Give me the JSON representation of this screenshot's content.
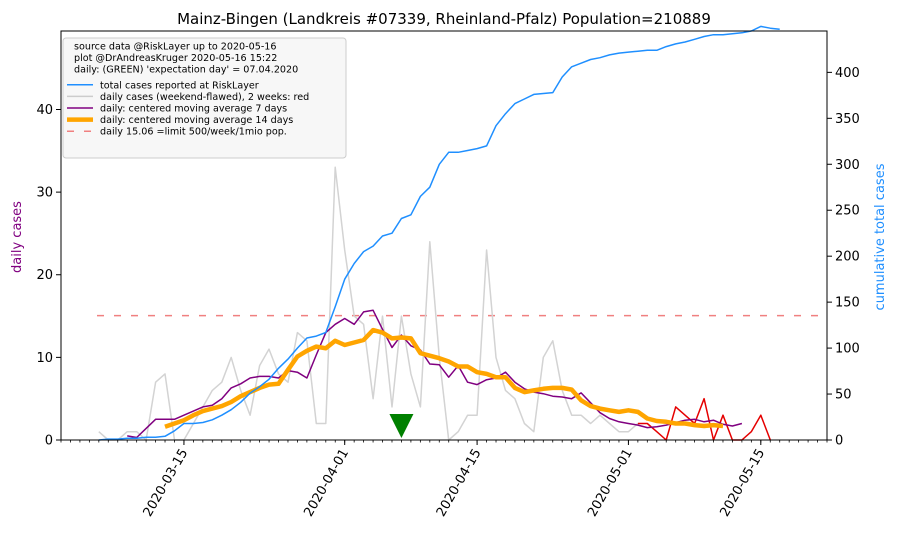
{
  "chart_data": {
    "type": "line",
    "title": "Mainz-Bingen (Landkreis #07339, Rheinland-Pfalz) Population=210889",
    "ylabel_left": "daily cases",
    "ylabel_right": "cumulative total cases",
    "ylim_left": [
      0,
      49.5
    ],
    "ylim_right": [
      0,
      445
    ],
    "yticks_left": [
      0,
      10,
      20,
      30,
      40
    ],
    "yticks_right": [
      0,
      50,
      100,
      150,
      200,
      250,
      300,
      350,
      400
    ],
    "xlim": [
      "2020-03-02",
      "2020-05-22"
    ],
    "xticks": [
      "2020-03-15",
      "2020-04-01",
      "2020-04-15",
      "2020-05-01",
      "2020-05-15"
    ],
    "expectation_day": "2020-04-07",
    "limit_value": 15.06,
    "legend": [
      {
        "label": "source data @RiskLayer up to 2020-05-16",
        "style": "none"
      },
      {
        "label": "plot @DrAndreasKruger 2020-05-16 15:22",
        "style": "none"
      },
      {
        "label": "daily: (GREEN) 'expectation day' = 07.04.2020",
        "style": "none"
      },
      {
        "label": "total cases reported at RiskLayer",
        "style": "line",
        "color": "#1f8fff",
        "width": 1.5
      },
      {
        "label": "daily cases (weekend-flawed), 2 weeks: red",
        "style": "line",
        "color": "#cccccc",
        "width": 1.5
      },
      {
        "label": "daily: centered moving average 7 days",
        "style": "line",
        "color": "#800080",
        "width": 1.5
      },
      {
        "label": "daily: centered moving average 14 days",
        "style": "line",
        "color": "#ffa500",
        "width": 4.5
      },
      {
        "label": "daily 15.06 =limit 500/week/1mio pop.",
        "style": "dash",
        "color": "#f08080",
        "width": 1.5
      }
    ],
    "series": [
      {
        "name": "daily cases (weekend-flawed), 2 weeks: red",
        "axis": "left",
        "color": "#d3d3d3",
        "width": 1.5,
        "x": [
          "2020-03-06",
          "2020-03-07",
          "2020-03-08",
          "2020-03-09",
          "2020-03-10",
          "2020-03-11",
          "2020-03-12",
          "2020-03-13",
          "2020-03-14",
          "2020-03-15",
          "2020-03-16",
          "2020-03-17",
          "2020-03-18",
          "2020-03-19",
          "2020-03-20",
          "2020-03-21",
          "2020-03-22",
          "2020-03-23",
          "2020-03-24",
          "2020-03-25",
          "2020-03-26",
          "2020-03-27",
          "2020-03-28",
          "2020-03-29",
          "2020-03-30",
          "2020-03-31",
          "2020-04-01",
          "2020-04-02",
          "2020-04-03",
          "2020-04-04",
          "2020-04-05",
          "2020-04-06",
          "2020-04-07",
          "2020-04-08",
          "2020-04-09",
          "2020-04-10",
          "2020-04-11",
          "2020-04-12",
          "2020-04-13",
          "2020-04-14",
          "2020-04-15",
          "2020-04-16",
          "2020-04-17",
          "2020-04-18",
          "2020-04-19",
          "2020-04-20",
          "2020-04-21",
          "2020-04-22",
          "2020-04-23",
          "2020-04-24",
          "2020-04-25",
          "2020-04-26",
          "2020-04-27",
          "2020-04-28",
          "2020-04-29",
          "2020-04-30",
          "2020-05-01",
          "2020-05-02"
        ],
        "y": [
          1,
          0,
          0,
          1,
          1,
          0,
          7,
          8,
          0,
          0,
          2,
          4,
          6,
          7,
          10,
          6,
          3,
          9,
          11,
          8,
          7,
          13,
          12,
          2,
          2,
          33,
          23,
          15,
          14,
          5,
          15,
          4,
          15,
          8,
          4,
          24,
          10,
          0,
          1,
          3,
          3,
          23,
          10,
          6,
          5,
          2,
          1,
          10,
          12,
          6,
          3,
          3,
          2,
          3,
          2,
          1,
          1,
          2
        ]
      },
      {
        "name": "daily cases, last 2 weeks",
        "axis": "left",
        "color": "#e50000",
        "width": 1.5,
        "x": [
          "2020-05-02",
          "2020-05-03",
          "2020-05-04",
          "2020-05-05",
          "2020-05-06",
          "2020-05-07",
          "2020-05-08",
          "2020-05-09",
          "2020-05-10",
          "2020-05-11",
          "2020-05-12",
          "2020-05-13",
          "2020-05-14",
          "2020-05-15",
          "2020-05-16"
        ],
        "y": [
          2,
          2,
          1,
          0,
          4,
          3,
          2,
          5,
          0,
          3,
          0,
          0,
          1,
          3,
          0
        ]
      },
      {
        "name": "daily: centered moving average 7 days",
        "axis": "left",
        "color": "#800080",
        "width": 1.5,
        "x": [
          "2020-03-09",
          "2020-03-10",
          "2020-03-11",
          "2020-03-12",
          "2020-03-13",
          "2020-03-14",
          "2020-03-15",
          "2020-03-16",
          "2020-03-17",
          "2020-03-18",
          "2020-03-19",
          "2020-03-20",
          "2020-03-21",
          "2020-03-22",
          "2020-03-23",
          "2020-03-24",
          "2020-03-25",
          "2020-03-26",
          "2020-03-27",
          "2020-03-28",
          "2020-03-29",
          "2020-03-30",
          "2020-03-31",
          "2020-04-01",
          "2020-04-02",
          "2020-04-03",
          "2020-04-04",
          "2020-04-05",
          "2020-04-06",
          "2020-04-07",
          "2020-04-08",
          "2020-04-09",
          "2020-04-10",
          "2020-04-11",
          "2020-04-12",
          "2020-04-13",
          "2020-04-14",
          "2020-04-15",
          "2020-04-16",
          "2020-04-17",
          "2020-04-18",
          "2020-04-19",
          "2020-04-20",
          "2020-04-21",
          "2020-04-22",
          "2020-04-23",
          "2020-04-24",
          "2020-04-25",
          "2020-04-26",
          "2020-04-27",
          "2020-04-28",
          "2020-04-29",
          "2020-04-30",
          "2020-05-01",
          "2020-05-02",
          "2020-05-03",
          "2020-05-04",
          "2020-05-05",
          "2020-05-06",
          "2020-05-07",
          "2020-05-08",
          "2020-05-09",
          "2020-05-10",
          "2020-05-11",
          "2020-05-12",
          "2020-05-13"
        ],
        "y": [
          0.5,
          0.3,
          1.4,
          2.5,
          2.5,
          2.5,
          3.0,
          3.5,
          4.0,
          4.2,
          5.0,
          6.3,
          6.8,
          7.5,
          7.7,
          7.7,
          7.5,
          8.4,
          8.2,
          7.5,
          10.3,
          13.0,
          14.0,
          14.7,
          14.0,
          15.5,
          15.7,
          13.4,
          11.2,
          12.7,
          11.4,
          10.9,
          9.2,
          9.1,
          7.6,
          9.0,
          7.0,
          6.7,
          7.3,
          7.5,
          8.2,
          7.0,
          6.2,
          5.8,
          5.6,
          5.3,
          5.2,
          5.0,
          5.7,
          4.5,
          3.3,
          2.6,
          2.2,
          2.0,
          1.8,
          1.5,
          1.6,
          1.8,
          2.1,
          2.4,
          2.5,
          2.2,
          2.4,
          1.9,
          1.7,
          2.0
        ]
      },
      {
        "name": "daily: centered moving average 14 days",
        "axis": "left",
        "color": "#ffa500",
        "width": 4.5,
        "x": [
          "2020-03-13",
          "2020-03-14",
          "2020-03-15",
          "2020-03-16",
          "2020-03-17",
          "2020-03-18",
          "2020-03-19",
          "2020-03-20",
          "2020-03-21",
          "2020-03-22",
          "2020-03-23",
          "2020-03-24",
          "2020-03-25",
          "2020-03-26",
          "2020-03-27",
          "2020-03-28",
          "2020-03-29",
          "2020-03-30",
          "2020-03-31",
          "2020-04-01",
          "2020-04-02",
          "2020-04-03",
          "2020-04-04",
          "2020-04-05",
          "2020-04-06",
          "2020-04-07",
          "2020-04-08",
          "2020-04-09",
          "2020-04-10",
          "2020-04-11",
          "2020-04-12",
          "2020-04-13",
          "2020-04-14",
          "2020-04-15",
          "2020-04-16",
          "2020-04-17",
          "2020-04-18",
          "2020-04-19",
          "2020-04-20",
          "2020-04-21",
          "2020-04-22",
          "2020-04-23",
          "2020-04-24",
          "2020-04-25",
          "2020-04-26",
          "2020-04-27",
          "2020-04-28",
          "2020-04-29",
          "2020-04-30",
          "2020-05-01",
          "2020-05-02",
          "2020-05-03",
          "2020-05-04",
          "2020-05-05",
          "2020-05-06",
          "2020-05-07",
          "2020-05-08",
          "2020-05-09",
          "2020-05-10",
          "2020-05-11"
        ],
        "y": [
          1.6,
          2.0,
          2.4,
          3.0,
          3.5,
          3.8,
          4.1,
          4.6,
          5.3,
          5.8,
          6.3,
          6.7,
          6.8,
          8.5,
          10.1,
          10.8,
          11.3,
          11.1,
          12.0,
          11.5,
          11.8,
          12.1,
          13.3,
          13.0,
          12.3,
          12.4,
          12.3,
          10.5,
          10.2,
          9.9,
          9.5,
          8.9,
          8.9,
          8.2,
          8.0,
          7.6,
          7.6,
          6.3,
          5.8,
          6.0,
          6.2,
          6.3,
          6.3,
          6.1,
          4.8,
          4.1,
          3.8,
          3.6,
          3.4,
          3.6,
          3.4,
          2.6,
          2.3,
          2.2,
          2.0,
          2.0,
          1.8,
          1.7,
          1.8,
          1.7
        ]
      },
      {
        "name": "total cases reported at RiskLayer",
        "axis": "right",
        "color": "#1f8fff",
        "width": 1.5,
        "x": [
          "2020-03-06",
          "2020-03-07",
          "2020-03-08",
          "2020-03-09",
          "2020-03-10",
          "2020-03-11",
          "2020-03-12",
          "2020-03-13",
          "2020-03-14",
          "2020-03-15",
          "2020-03-16",
          "2020-03-17",
          "2020-03-18",
          "2020-03-19",
          "2020-03-20",
          "2020-03-21",
          "2020-03-22",
          "2020-03-23",
          "2020-03-24",
          "2020-03-25",
          "2020-03-26",
          "2020-03-27",
          "2020-03-28",
          "2020-03-29",
          "2020-03-30",
          "2020-03-31",
          "2020-04-01",
          "2020-04-02",
          "2020-04-03",
          "2020-04-04",
          "2020-04-05",
          "2020-04-06",
          "2020-04-07",
          "2020-04-08",
          "2020-04-09",
          "2020-04-10",
          "2020-04-11",
          "2020-04-12",
          "2020-04-13",
          "2020-04-14",
          "2020-04-15",
          "2020-04-16",
          "2020-04-17",
          "2020-04-18",
          "2020-04-19",
          "2020-04-20",
          "2020-04-21",
          "2020-04-22",
          "2020-04-23",
          "2020-04-24",
          "2020-04-25",
          "2020-04-26",
          "2020-04-27",
          "2020-04-28",
          "2020-04-29",
          "2020-04-30",
          "2020-05-01",
          "2020-05-02",
          "2020-05-03",
          "2020-05-04",
          "2020-05-05",
          "2020-05-06",
          "2020-05-07",
          "2020-05-08",
          "2020-05-09",
          "2020-05-10",
          "2020-05-11",
          "2020-05-12",
          "2020-05-13",
          "2020-05-14",
          "2020-05-15",
          "2020-05-16",
          "2020-05-17"
        ],
        "y": [
          0,
          1,
          1,
          2,
          2,
          3,
          3,
          4,
          10,
          18,
          18,
          19,
          22,
          27,
          33,
          41,
          51,
          58,
          66,
          78,
          88,
          100,
          111,
          113,
          117,
          145,
          175,
          192,
          205,
          211,
          222,
          225,
          241,
          245,
          265,
          275,
          300,
          313,
          313,
          315,
          317,
          320,
          342,
          355,
          366,
          371,
          376,
          377,
          378,
          395,
          406,
          410,
          414,
          416,
          419,
          421,
          422,
          423,
          424,
          424,
          428,
          431,
          433,
          436,
          439,
          441,
          441,
          442,
          443,
          445,
          450,
          448,
          447
        ]
      }
    ]
  }
}
